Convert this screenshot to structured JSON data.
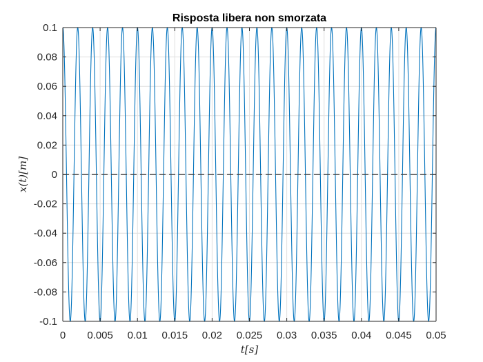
{
  "chart_data": {
    "type": "line",
    "title": "Risposta libera non smorzata",
    "xlabel": "t[s]",
    "ylabel": "x(t)[m]",
    "xlim": [
      0,
      0.05
    ],
    "ylim": [
      -0.1,
      0.1
    ],
    "xticks": [
      0,
      0.005,
      0.01,
      0.015,
      0.02,
      0.025,
      0.03,
      0.035,
      0.04,
      0.045,
      0.05
    ],
    "xtick_labels": [
      "0",
      "0.005",
      "0.01",
      "0.015",
      "0.02",
      "0.025",
      "0.03",
      "0.035",
      "0.04",
      "0.045",
      "0.05"
    ],
    "yticks": [
      -0.1,
      -0.08,
      -0.06,
      -0.04,
      -0.02,
      0,
      0.02,
      0.04,
      0.06,
      0.08,
      0.1
    ],
    "ytick_labels": [
      "-0.1",
      "-0.08",
      "-0.06",
      "-0.04",
      "-0.02",
      "0",
      "0.02",
      "0.04",
      "0.06",
      "0.08",
      "0.1"
    ],
    "grid": true,
    "series": [
      {
        "kind": "sinusoid",
        "amplitude": 0.1,
        "frequency_hz": 500,
        "phase_rad": 1.5708,
        "t_start": 0,
        "t_end": 0.05,
        "color": "#0072BD"
      },
      {
        "kind": "constant",
        "value": 0,
        "t_start": 0,
        "t_end": 0.05,
        "style": "dashed",
        "color": "#404040"
      }
    ],
    "colors": {
      "axes": "#262626",
      "grid": "#dfdfdf",
      "background": "#ffffff"
    }
  }
}
